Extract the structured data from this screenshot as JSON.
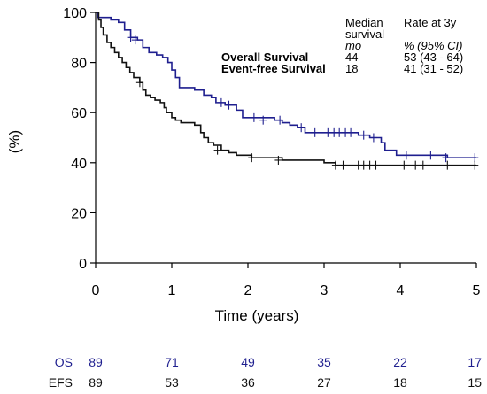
{
  "chart_data": {
    "type": "line",
    "title": "",
    "xlabel": "Time (years)",
    "ylabel": "(%)",
    "xlim": [
      0,
      5
    ],
    "ylim": [
      0,
      100
    ],
    "x_ticks": [
      "0",
      "1",
      "2",
      "3",
      "4",
      "5"
    ],
    "y_ticks": [
      "0",
      "20",
      "40",
      "60",
      "80",
      "100"
    ],
    "grid": false,
    "legend": {
      "placement": "top-right",
      "col_median_header": [
        "Median",
        "survival",
        "mo"
      ],
      "col_rate_header": [
        "Rate at 3y",
        "% (95% CI)"
      ]
    },
    "series": [
      {
        "name": "Overall Survival",
        "color": "#1f1f8f",
        "median": "44",
        "rate": "53 (43 - 64)",
        "steps": [
          [
            0,
            100
          ],
          [
            0.03,
            98
          ],
          [
            0.2,
            97
          ],
          [
            0.3,
            96
          ],
          [
            0.38,
            93
          ],
          [
            0.46,
            90
          ],
          [
            0.55,
            89
          ],
          [
            0.62,
            86
          ],
          [
            0.7,
            84
          ],
          [
            0.8,
            83
          ],
          [
            0.88,
            82
          ],
          [
            0.95,
            80
          ],
          [
            1.0,
            77
          ],
          [
            1.05,
            74
          ],
          [
            1.1,
            70
          ],
          [
            1.2,
            70
          ],
          [
            1.3,
            69
          ],
          [
            1.42,
            67
          ],
          [
            1.52,
            66
          ],
          [
            1.58,
            64
          ],
          [
            1.7,
            63
          ],
          [
            1.85,
            61
          ],
          [
            1.93,
            58
          ],
          [
            2.35,
            57
          ],
          [
            2.45,
            56
          ],
          [
            2.55,
            55
          ],
          [
            2.65,
            54
          ],
          [
            2.75,
            52
          ],
          [
            3.0,
            52
          ],
          [
            3.45,
            51
          ],
          [
            3.6,
            50
          ],
          [
            3.75,
            48
          ],
          [
            3.8,
            45
          ],
          [
            3.95,
            43
          ],
          [
            4.55,
            43
          ],
          [
            4.62,
            42
          ],
          [
            5.0,
            42
          ]
        ],
        "censored": [
          [
            0.46,
            90
          ],
          [
            0.52,
            89
          ],
          [
            1.65,
            64
          ],
          [
            1.75,
            63
          ],
          [
            2.08,
            58
          ],
          [
            2.2,
            57
          ],
          [
            2.42,
            57
          ],
          [
            2.7,
            54
          ],
          [
            2.88,
            52
          ],
          [
            3.05,
            52
          ],
          [
            3.13,
            52
          ],
          [
            3.2,
            52
          ],
          [
            3.28,
            52
          ],
          [
            3.35,
            52
          ],
          [
            3.52,
            51
          ],
          [
            3.65,
            50
          ],
          [
            4.08,
            43
          ],
          [
            4.4,
            43
          ],
          [
            4.6,
            42
          ],
          [
            4.98,
            42
          ]
        ]
      },
      {
        "name": "Event-free Survival",
        "color": "#111111",
        "median": "18",
        "rate": "41 (31 - 52)",
        "steps": [
          [
            0,
            100
          ],
          [
            0.04,
            97
          ],
          [
            0.07,
            94
          ],
          [
            0.1,
            91
          ],
          [
            0.15,
            88
          ],
          [
            0.2,
            86
          ],
          [
            0.25,
            84
          ],
          [
            0.3,
            82
          ],
          [
            0.35,
            80
          ],
          [
            0.4,
            78
          ],
          [
            0.45,
            76
          ],
          [
            0.5,
            74
          ],
          [
            0.58,
            72
          ],
          [
            0.62,
            69
          ],
          [
            0.66,
            67
          ],
          [
            0.72,
            66
          ],
          [
            0.78,
            65
          ],
          [
            0.85,
            64
          ],
          [
            0.9,
            62
          ],
          [
            0.93,
            60
          ],
          [
            1.0,
            58
          ],
          [
            1.05,
            57
          ],
          [
            1.12,
            56
          ],
          [
            1.2,
            56
          ],
          [
            1.3,
            55
          ],
          [
            1.38,
            52
          ],
          [
            1.42,
            50
          ],
          [
            1.48,
            48
          ],
          [
            1.55,
            47
          ],
          [
            1.65,
            45
          ],
          [
            1.75,
            44
          ],
          [
            1.85,
            43
          ],
          [
            2.05,
            42
          ],
          [
            2.45,
            41
          ],
          [
            3.0,
            40
          ],
          [
            3.15,
            39
          ],
          [
            5.0,
            39
          ]
        ],
        "censored": [
          [
            0.58,
            72
          ],
          [
            1.6,
            45
          ],
          [
            2.05,
            42
          ],
          [
            2.4,
            41
          ],
          [
            3.15,
            39
          ],
          [
            3.25,
            39
          ],
          [
            3.45,
            39
          ],
          [
            3.52,
            39
          ],
          [
            3.6,
            39
          ],
          [
            3.68,
            39
          ],
          [
            4.05,
            39
          ],
          [
            4.2,
            39
          ],
          [
            4.3,
            39
          ],
          [
            4.62,
            39
          ],
          [
            4.98,
            39
          ]
        ]
      }
    ],
    "risk_table": {
      "times": [
        0,
        1,
        2,
        3,
        4,
        5
      ],
      "rows": [
        {
          "label": "OS",
          "color": "#1f1f8f",
          "values": [
            "89",
            "71",
            "49",
            "35",
            "22",
            "17"
          ]
        },
        {
          "label": "EFS",
          "color": "#111111",
          "values": [
            "89",
            "53",
            "36",
            "27",
            "18",
            "15"
          ]
        }
      ]
    }
  }
}
